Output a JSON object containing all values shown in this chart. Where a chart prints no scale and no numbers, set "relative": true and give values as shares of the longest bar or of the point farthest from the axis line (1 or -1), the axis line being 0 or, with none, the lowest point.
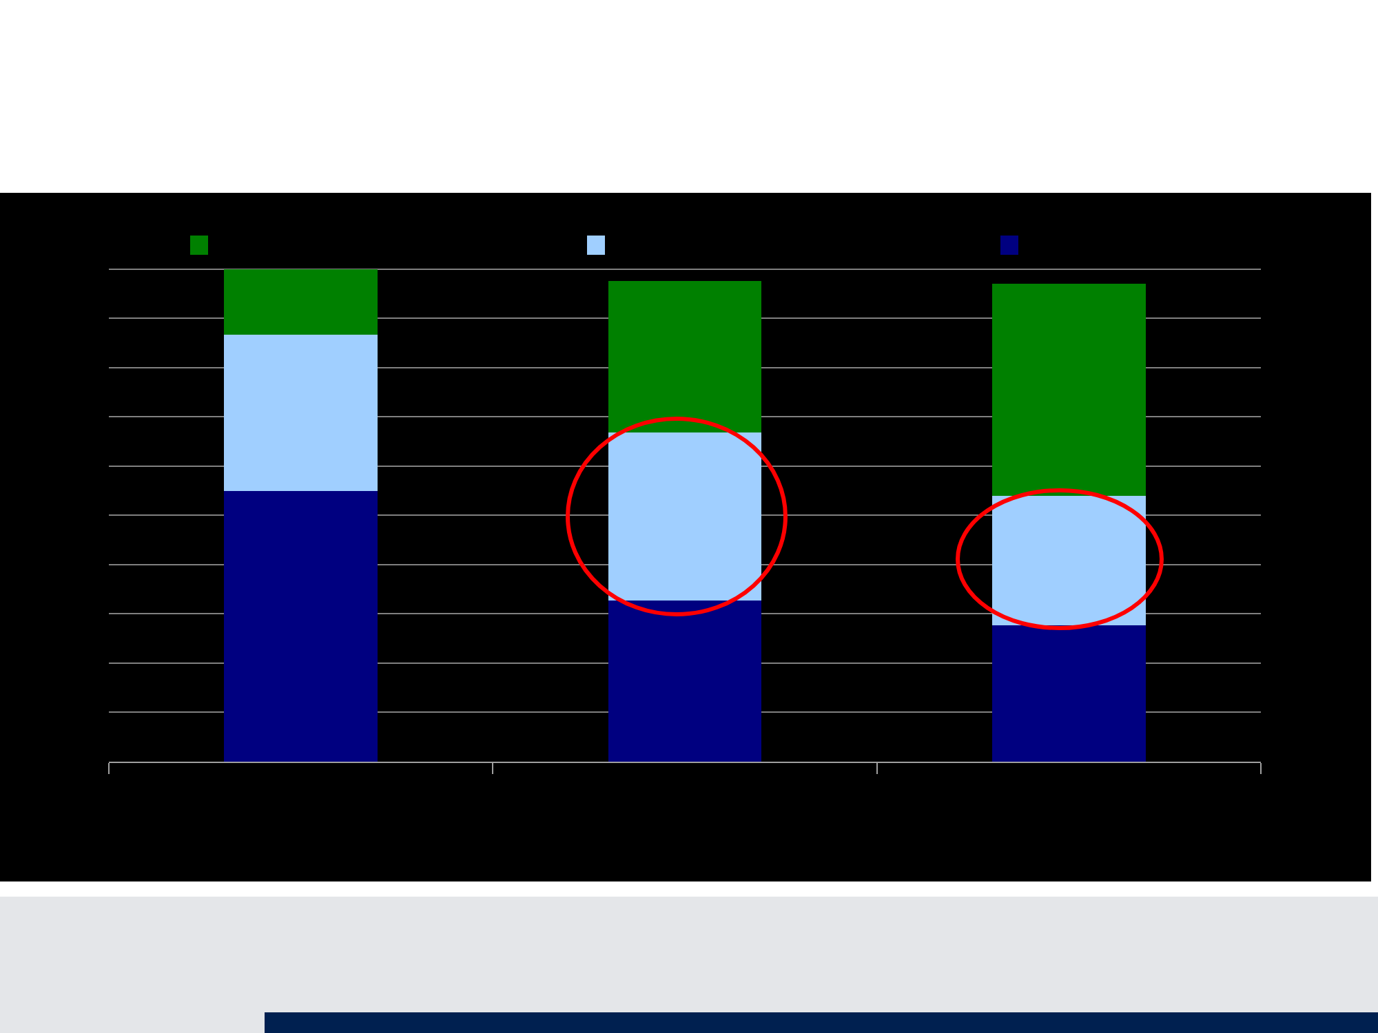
{
  "chart_data": {
    "type": "bar",
    "stacked": true,
    "relative": true,
    "categories": [
      null,
      null,
      null
    ],
    "series": [
      {
        "color": "#000080",
        "values": [
          0.55,
          0.327,
          0.277
        ]
      },
      {
        "color": "#a0cfff",
        "values": [
          0.316,
          0.341,
          0.263
        ]
      },
      {
        "color": "#008000",
        "values": [
          0.134,
          0.307,
          0.43
        ]
      }
    ],
    "grid": "y"
  }
}
